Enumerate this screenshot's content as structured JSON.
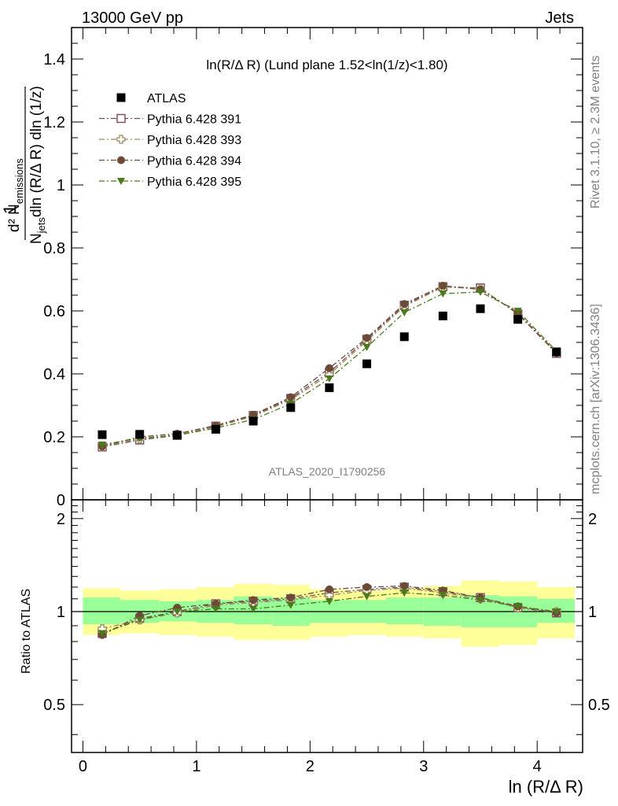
{
  "header": {
    "left": "13000 GeV pp",
    "right": "Jets"
  },
  "side_labels": {
    "rivet": "Rivet 3.1.10, ≥ 2.3M events",
    "mcplots": "mcplots.cern.ch [arXiv:1306.3436]"
  },
  "watermark": "ATLAS_2020_I1790256",
  "chart_data": [
    {
      "type": "scatter",
      "panel": "main",
      "title": "ln(R/Δ R) (Lund plane 1.52<ln(1/z)<1.80)",
      "xlabel": "ln (R/Δ R)",
      "ylabel": "1/N_jets d²N_emissions / dln (R/Δ R) dln (1/z)",
      "xlim": [
        -0.1,
        4.4
      ],
      "ylim": [
        0,
        1.5
      ],
      "xticks": [
        "0",
        "1",
        "2",
        "3",
        "4"
      ],
      "yticks": [
        "0",
        "0.2",
        "0.4",
        "0.6",
        "0.8",
        "1",
        "1.2",
        "1.4"
      ],
      "legend_position": "top-left",
      "x": [
        0.17,
        0.5,
        0.83,
        1.17,
        1.5,
        1.83,
        2.17,
        2.5,
        2.83,
        3.17,
        3.5,
        3.83,
        4.17
      ],
      "series": [
        {
          "name": "ATLAS",
          "color": "#000000",
          "marker": "filled-square",
          "values": [
            0.207,
            0.208,
            0.205,
            0.224,
            0.25,
            0.293,
            0.356,
            0.432,
            0.518,
            0.584,
            0.607,
            0.573,
            0.47
          ]
        },
        {
          "name": "Pythia 6.428 391",
          "color": "#7a4a5a",
          "marker": "open-square",
          "line": "dash-dot",
          "values": [
            0.168,
            0.19,
            0.205,
            0.234,
            0.268,
            0.322,
            0.405,
            0.51,
            0.618,
            0.677,
            0.673,
            0.59,
            0.465
          ]
        },
        {
          "name": "Pythia 6.428 393",
          "color": "#9a8a5a",
          "marker": "open-cross",
          "line": "dash-dot",
          "values": [
            0.17,
            0.193,
            0.207,
            0.232,
            0.265,
            0.318,
            0.398,
            0.505,
            0.614,
            0.676,
            0.671,
            0.592,
            0.468
          ]
        },
        {
          "name": "Pythia 6.428 394",
          "color": "#6b4a36",
          "marker": "filled-circle",
          "line": "dash-dot",
          "values": [
            0.17,
            0.2,
            0.21,
            0.236,
            0.27,
            0.326,
            0.418,
            0.514,
            0.622,
            0.68,
            0.668,
            0.594,
            0.466
          ]
        },
        {
          "name": "Pythia 6.428 395",
          "color": "#4a7a1a",
          "marker": "filled-triangle-down",
          "line": "dash-dot",
          "values": [
            0.175,
            0.196,
            0.205,
            0.228,
            0.255,
            0.305,
            0.385,
            0.485,
            0.595,
            0.655,
            0.66,
            0.6,
            0.472
          ]
        }
      ]
    },
    {
      "type": "scatter",
      "panel": "ratio",
      "ylabel": "Ratio to ATLAS",
      "xlabel": "ln (R/Δ R)",
      "xlim": [
        -0.1,
        4.4
      ],
      "ylim": [
        0.35,
        2.3
      ],
      "yticks_left": [
        "0.5",
        "1",
        "2"
      ],
      "yticks_right": [
        "0.5",
        "1",
        "2"
      ],
      "reference_line": 1,
      "x": [
        0.17,
        0.5,
        0.83,
        1.17,
        1.5,
        1.83,
        2.17,
        2.5,
        2.83,
        3.17,
        3.5,
        3.83,
        4.17
      ],
      "bin_edges": [
        0,
        0.33,
        0.67,
        1,
        1.33,
        1.67,
        2,
        2.33,
        2.67,
        3,
        3.33,
        3.67,
        4,
        4.33
      ],
      "band_stat": {
        "color": "#99ff99",
        "low": [
          0.91,
          0.92,
          0.93,
          0.92,
          0.91,
          0.9,
          0.92,
          0.92,
          0.91,
          0.9,
          0.89,
          0.89,
          0.92
        ],
        "high": [
          1.11,
          1.09,
          1.08,
          1.09,
          1.12,
          1.11,
          1.09,
          1.09,
          1.11,
          1.11,
          1.13,
          1.12,
          1.1
        ]
      },
      "band_total": {
        "color": "#ffff99",
        "low": [
          0.84,
          0.85,
          0.84,
          0.83,
          0.81,
          0.81,
          0.83,
          0.84,
          0.83,
          0.82,
          0.77,
          0.78,
          0.82
        ],
        "high": [
          1.19,
          1.17,
          1.18,
          1.2,
          1.23,
          1.22,
          1.18,
          1.17,
          1.19,
          1.21,
          1.26,
          1.25,
          1.2
        ]
      },
      "series": [
        {
          "name": "Pythia 6.428 391",
          "values": [
            0.85,
            0.95,
            1.0,
            1.06,
            1.08,
            1.1,
            1.15,
            1.18,
            1.2,
            1.16,
            1.11,
            1.03,
            0.99
          ]
        },
        {
          "name": "Pythia 6.428 393",
          "values": [
            0.88,
            0.94,
            0.99,
            1.05,
            1.07,
            1.09,
            1.13,
            1.17,
            1.19,
            1.15,
            1.1,
            1.03,
            1.0
          ]
        },
        {
          "name": "Pythia 6.428 394",
          "values": [
            0.84,
            0.97,
            1.03,
            1.06,
            1.09,
            1.11,
            1.18,
            1.2,
            1.21,
            1.17,
            1.11,
            1.04,
            0.99
          ]
        },
        {
          "name": "Pythia 6.428 395",
          "values": [
            0.85,
            0.94,
            1.0,
            1.02,
            1.02,
            1.05,
            1.08,
            1.12,
            1.15,
            1.13,
            1.09,
            1.04,
            1.0
          ]
        }
      ]
    }
  ]
}
